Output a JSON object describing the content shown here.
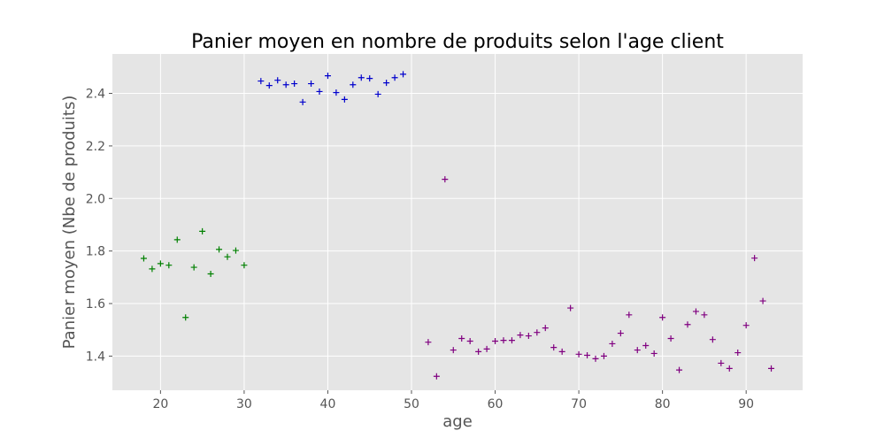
{
  "chart_data": {
    "type": "scatter",
    "title": "Panier moyen en nombre de produits selon l'age client",
    "xlabel": "age",
    "ylabel": "Panier moyen (Nbe de produits)",
    "xlim": [
      14.25,
      96.75
    ],
    "ylim": [
      1.27,
      2.55
    ],
    "xticks": [
      20,
      30,
      40,
      50,
      60,
      70,
      80,
      90
    ],
    "yticks": [
      1.4,
      1.6,
      1.8,
      2.0,
      2.2,
      2.4
    ],
    "ytick_labels": [
      "1.4",
      "1.6",
      "1.8",
      "2.0",
      "2.2",
      "2.4"
    ],
    "grid": true,
    "marker": "+",
    "background": "#e5e5e5",
    "series": [
      {
        "color": "#008000",
        "x": [
          18,
          19,
          20,
          21,
          22,
          23,
          24,
          25,
          26,
          27,
          28,
          29,
          30
        ],
        "y": [
          1.772,
          1.732,
          1.752,
          1.746,
          1.843,
          1.547,
          1.738,
          1.875,
          1.713,
          1.806,
          1.778,
          1.802,
          1.746
        ]
      },
      {
        "color": "#0000cc",
        "x": [
          32,
          33,
          34,
          35,
          36,
          37,
          38,
          39,
          40,
          41,
          42,
          43,
          44,
          45,
          46,
          47,
          48,
          49
        ],
        "y": [
          2.447,
          2.43,
          2.45,
          2.433,
          2.437,
          2.367,
          2.437,
          2.407,
          2.467,
          2.403,
          2.377,
          2.433,
          2.46,
          2.457,
          2.397,
          2.44,
          2.46,
          2.473
        ]
      },
      {
        "color": "#800080",
        "x": [
          52,
          53,
          54,
          55,
          56,
          57,
          58,
          59,
          60,
          61,
          62,
          63,
          64,
          65,
          66,
          67,
          68,
          69,
          70,
          71,
          72,
          73,
          74,
          75,
          76,
          77,
          78,
          79,
          80,
          81,
          82,
          83,
          84,
          85,
          86,
          87,
          88,
          89,
          90,
          91,
          92,
          93
        ],
        "y": [
          1.453,
          1.323,
          2.073,
          1.423,
          1.467,
          1.457,
          1.417,
          1.427,
          1.457,
          1.46,
          1.46,
          1.48,
          1.477,
          1.49,
          1.507,
          1.433,
          1.417,
          1.583,
          1.407,
          1.403,
          1.39,
          1.4,
          1.447,
          1.487,
          1.557,
          1.423,
          1.44,
          1.41,
          1.547,
          1.467,
          1.347,
          1.52,
          1.57,
          1.557,
          1.463,
          1.373,
          1.353,
          1.413,
          1.517,
          1.773,
          1.61,
          1.353
        ]
      }
    ]
  }
}
